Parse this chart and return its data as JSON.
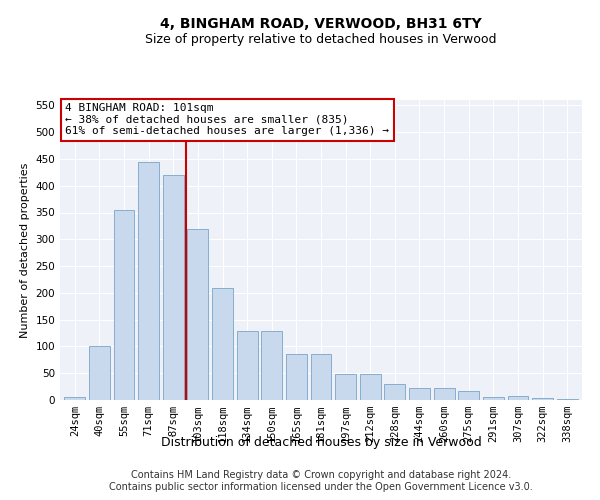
{
  "title": "4, BINGHAM ROAD, VERWOOD, BH31 6TY",
  "subtitle": "Size of property relative to detached houses in Verwood",
  "xlabel": "Distribution of detached houses by size in Verwood",
  "ylabel": "Number of detached properties",
  "categories": [
    "24sqm",
    "40sqm",
    "55sqm",
    "71sqm",
    "87sqm",
    "103sqm",
    "118sqm",
    "134sqm",
    "150sqm",
    "165sqm",
    "181sqm",
    "197sqm",
    "212sqm",
    "228sqm",
    "244sqm",
    "260sqm",
    "275sqm",
    "291sqm",
    "307sqm",
    "322sqm",
    "338sqm"
  ],
  "values": [
    5,
    100,
    355,
    445,
    420,
    320,
    210,
    128,
    128,
    85,
    85,
    48,
    48,
    30,
    22,
    22,
    17,
    6,
    8,
    3,
    1
  ],
  "bar_color": "#c9d9ed",
  "bar_edge_color": "#7ba4c7",
  "vline_color": "#cc0000",
  "annotation_text": "4 BINGHAM ROAD: 101sqm\n← 38% of detached houses are smaller (835)\n61% of semi-detached houses are larger (1,336) →",
  "annotation_box_color": "#ffffff",
  "annotation_box_edge_color": "#cc0000",
  "ylim": [
    0,
    560
  ],
  "yticks": [
    0,
    50,
    100,
    150,
    200,
    250,
    300,
    350,
    400,
    450,
    500,
    550
  ],
  "bg_color": "#eef2f8",
  "footer_line1": "Contains HM Land Registry data © Crown copyright and database right 2024.",
  "footer_line2": "Contains public sector information licensed under the Open Government Licence v3.0.",
  "title_fontsize": 10,
  "subtitle_fontsize": 9,
  "xlabel_fontsize": 9,
  "ylabel_fontsize": 8,
  "tick_fontsize": 7.5,
  "annotation_fontsize": 8,
  "footer_fontsize": 7
}
